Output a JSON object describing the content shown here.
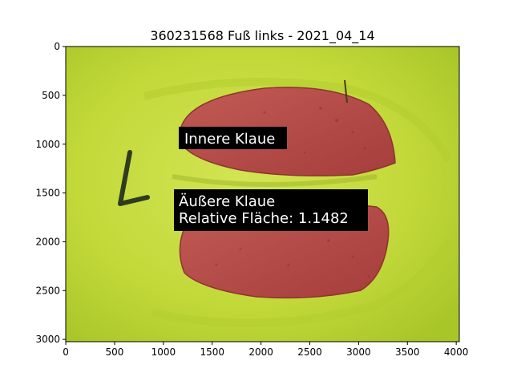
{
  "title": "360231568 Fuß links - 2021_04_14",
  "image": {
    "width": 4032,
    "height": 3024
  },
  "axes": {
    "x_ticks": [
      0,
      500,
      1000,
      1500,
      2000,
      2500,
      3000,
      3500,
      4000
    ],
    "y_ticks": [
      0,
      500,
      1000,
      1500,
      2000,
      2500,
      3000
    ]
  },
  "labels": {
    "inner": "Innere Klaue",
    "outer_line1": "Äußere Klaue",
    "outer_line2": "Relative Fläche: 1.1482"
  },
  "colors": {
    "background_green": "#c3d93a",
    "claw_red": "#b84a46",
    "label_bg": "#000000",
    "label_text": "#ffffff"
  }
}
